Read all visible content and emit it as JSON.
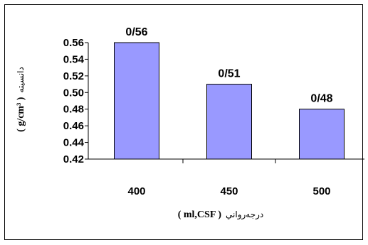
{
  "chart_data": {
    "type": "bar",
    "categories": [
      "400",
      "450",
      "500"
    ],
    "values": [
      0.56,
      0.51,
      0.48
    ],
    "data_labels": [
      "0/56",
      "0/51",
      "0/48"
    ],
    "ylim": [
      0.42,
      0.56
    ],
    "yticks": [
      "0.42",
      "0.44",
      "0.46",
      "0.48",
      "0.50",
      "0.52",
      "0.54",
      "0.56"
    ],
    "ytick_values": [
      0.42,
      0.44,
      0.46,
      0.48,
      0.5,
      0.52,
      0.54,
      0.56
    ],
    "xlabel_unit": "( ml,CSF )",
    "xlabel_text": "درجه‌رواني",
    "ylabel_unit": "( g/cm³ )",
    "ylabel_text": "دانسيته",
    "bar_color": "#9999ff",
    "grid": false,
    "legend": "none"
  }
}
